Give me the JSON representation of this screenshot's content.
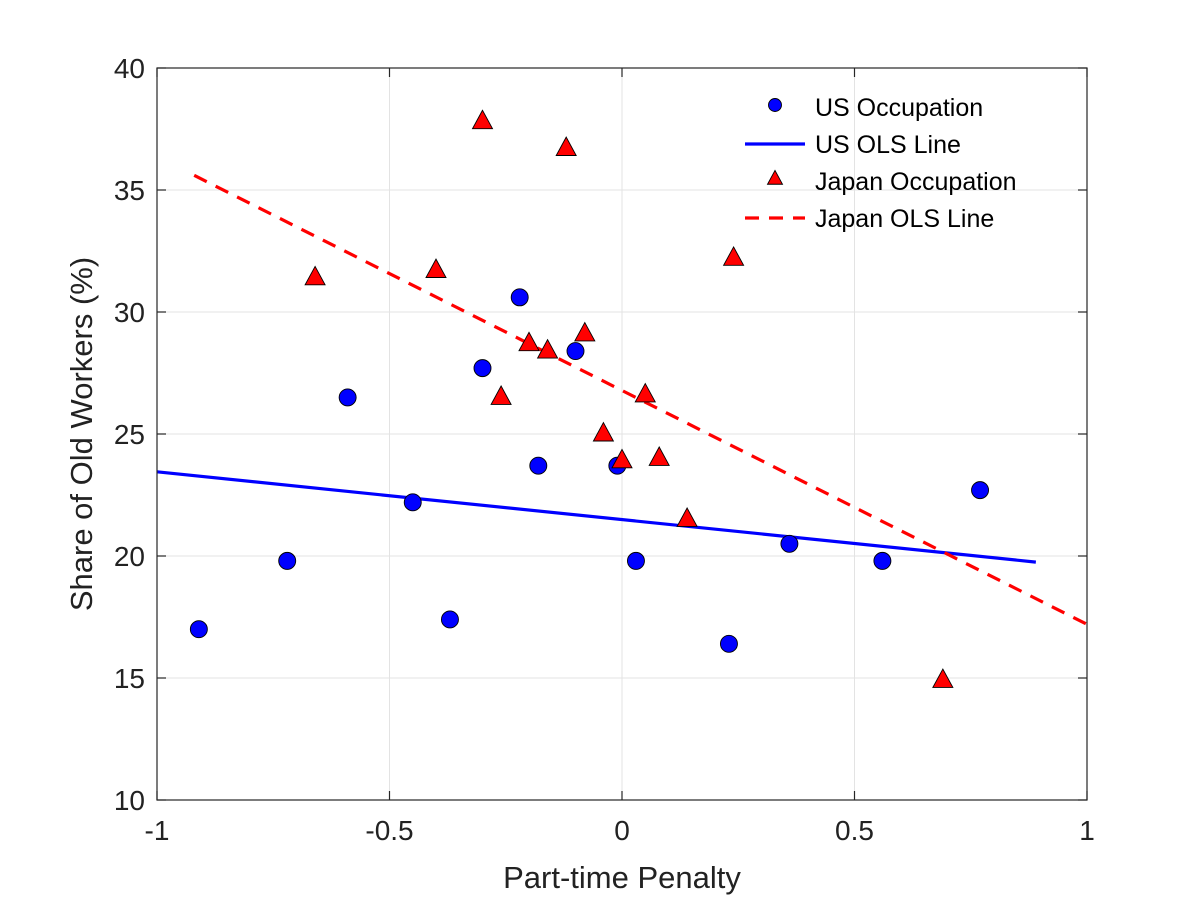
{
  "chart_data": {
    "type": "scatter",
    "xlabel": "Part-time Penalty",
    "ylabel": "Share of Old Workers (%)",
    "xlim": [
      -1,
      1
    ],
    "ylim": [
      10,
      40
    ],
    "x_ticks": [
      -1,
      -0.5,
      0,
      0.5,
      1
    ],
    "x_tick_labels": [
      "-1",
      "-0.5",
      "0",
      "0.5",
      "1"
    ],
    "y_ticks": [
      10,
      15,
      20,
      25,
      30,
      35,
      40
    ],
    "y_tick_labels": [
      "10",
      "15",
      "20",
      "25",
      "30",
      "35",
      "40"
    ],
    "grid": true,
    "legend_position": "top-right",
    "series": [
      {
        "name": "US Occupation",
        "kind": "scatter",
        "marker": "circle",
        "color": "#0000ff",
        "points": [
          [
            -0.91,
            17.0
          ],
          [
            -0.72,
            19.8
          ],
          [
            -0.59,
            26.5
          ],
          [
            -0.45,
            22.2
          ],
          [
            -0.37,
            17.4
          ],
          [
            -0.3,
            27.7
          ],
          [
            -0.22,
            30.6
          ],
          [
            -0.18,
            23.7
          ],
          [
            -0.1,
            28.4
          ],
          [
            -0.01,
            23.7
          ],
          [
            0.03,
            19.8
          ],
          [
            0.23,
            16.4
          ],
          [
            0.36,
            20.5
          ],
          [
            0.56,
            19.8
          ],
          [
            0.77,
            22.7
          ]
        ]
      },
      {
        "name": "US OLS Line",
        "kind": "line",
        "style": "solid",
        "color": "#0000ff",
        "points": [
          [
            -1.0,
            23.45
          ],
          [
            0.89,
            19.75
          ]
        ]
      },
      {
        "name": "Japan Occupation",
        "kind": "scatter",
        "marker": "triangle",
        "color": "#ff0000",
        "points": [
          [
            -0.66,
            31.4
          ],
          [
            -0.4,
            31.7
          ],
          [
            -0.3,
            37.8
          ],
          [
            -0.26,
            26.5
          ],
          [
            -0.2,
            28.7
          ],
          [
            -0.16,
            28.4
          ],
          [
            -0.12,
            36.7
          ],
          [
            -0.08,
            29.1
          ],
          [
            -0.04,
            25.0
          ],
          [
            0.0,
            23.9
          ],
          [
            0.05,
            26.6
          ],
          [
            0.08,
            24.0
          ],
          [
            0.14,
            21.5
          ],
          [
            0.24,
            32.2
          ],
          [
            0.69,
            14.9
          ]
        ]
      },
      {
        "name": "Japan OLS Line",
        "kind": "line",
        "style": "dashed",
        "color": "#ff0000",
        "points": [
          [
            -0.92,
            35.6
          ],
          [
            1.0,
            17.2
          ]
        ]
      }
    ]
  }
}
